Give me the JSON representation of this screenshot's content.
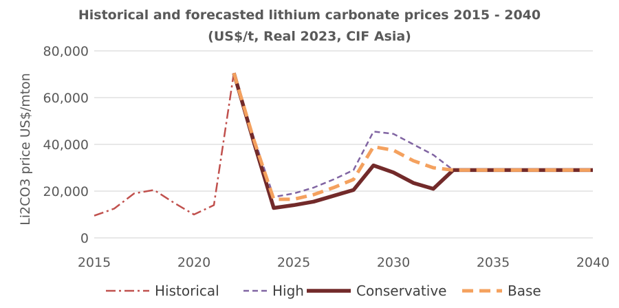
{
  "chart_data": {
    "type": "line",
    "title": "Historical and forecasted lithium carbonate prices 2015 - 2040",
    "subtitle": "(US$/t, Real 2023, CIF Asia)",
    "xlabel": "",
    "ylabel": "Li2CO3 price US$/mton",
    "xlim": [
      2015,
      2040
    ],
    "ylim": [
      0,
      80000
    ],
    "x_ticks": [
      2015,
      2020,
      2025,
      2030,
      2035,
      2040
    ],
    "x_tick_labels": [
      "2015",
      "2020",
      "2025",
      "2030",
      "2035",
      "2040"
    ],
    "y_ticks": [
      0,
      20000,
      40000,
      60000,
      80000
    ],
    "y_tick_labels": [
      "0",
      "20,000",
      "40,000",
      "60,000",
      "80,000"
    ],
    "grid": true,
    "legend_position": "bottom",
    "series": [
      {
        "name": "Historical",
        "color": "#C0504D",
        "style": "dash-dot",
        "x": [
          2015,
          2016,
          2017,
          2018,
          2019,
          2020,
          2021,
          2022
        ],
        "values": [
          9500,
          12500,
          19000,
          20500,
          15000,
          10000,
          14000,
          70500
        ]
      },
      {
        "name": "High",
        "color": "#8064A2",
        "style": "dashed",
        "x": [
          2022,
          2023,
          2024,
          2025,
          2026,
          2027,
          2028,
          2029,
          2030,
          2031,
          2032,
          2033,
          2034,
          2035,
          2036,
          2037,
          2038,
          2039,
          2040
        ],
        "values": [
          70500,
          43000,
          17500,
          19000,
          21500,
          25000,
          29000,
          45500,
          44500,
          40000,
          35500,
          29000,
          29000,
          29000,
          29000,
          29000,
          29000,
          29000,
          29000
        ]
      },
      {
        "name": "Conservative",
        "color": "#722A2A",
        "style": "solid-thick",
        "x": [
          2022,
          2023,
          2024,
          2025,
          2026,
          2027,
          2028,
          2029,
          2030,
          2031,
          2032,
          2033,
          2034,
          2035,
          2036,
          2037,
          2038,
          2039,
          2040
        ],
        "values": [
          70500,
          41000,
          12800,
          14000,
          15500,
          18000,
          20500,
          31000,
          28000,
          23500,
          21000,
          29000,
          29000,
          29000,
          29000,
          29000,
          29000,
          29000,
          29000
        ]
      },
      {
        "name": "Base",
        "color": "#F4A15E",
        "style": "dashed-thick",
        "x": [
          2022,
          2023,
          2024,
          2025,
          2026,
          2027,
          2028,
          2029,
          2030,
          2031,
          2032,
          2033,
          2034,
          2035,
          2036,
          2037,
          2038,
          2039,
          2040
        ],
        "values": [
          70500,
          42000,
          16500,
          16500,
          18500,
          21500,
          25000,
          39000,
          37500,
          33000,
          30000,
          29000,
          29000,
          29000,
          29000,
          29000,
          29000,
          29000,
          29000
        ]
      }
    ]
  }
}
